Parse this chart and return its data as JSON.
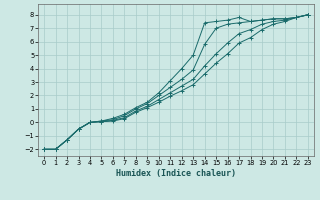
{
  "title": "",
  "xlabel": "Humidex (Indice chaleur)",
  "ylabel": "",
  "xlim": [
    -0.5,
    23.5
  ],
  "ylim": [
    -2.5,
    8.8
  ],
  "xticks": [
    0,
    1,
    2,
    3,
    4,
    5,
    6,
    7,
    8,
    9,
    10,
    11,
    12,
    13,
    14,
    15,
    16,
    17,
    18,
    19,
    20,
    21,
    22,
    23
  ],
  "yticks": [
    -2,
    -1,
    0,
    1,
    2,
    3,
    4,
    5,
    6,
    7,
    8
  ],
  "bg_color": "#cde8e4",
  "grid_color": "#a8ccca",
  "line_color": "#1a6b6b",
  "lines": [
    {
      "x": [
        0,
        1,
        2,
        3,
        4,
        5,
        6,
        7,
        8,
        9,
        10,
        11,
        12,
        13,
        14,
        15,
        16,
        17,
        18,
        19,
        20,
        21,
        22,
        23
      ],
      "y": [
        -2,
        -2,
        -1.3,
        -0.5,
        0.0,
        0.1,
        0.3,
        0.6,
        1.1,
        1.5,
        2.2,
        3.1,
        4.0,
        5.0,
        7.4,
        7.5,
        7.6,
        7.8,
        7.5,
        7.6,
        7.7,
        7.7,
        7.8,
        8.0
      ],
      "marker": "+"
    },
    {
      "x": [
        0,
        1,
        2,
        3,
        4,
        5,
        6,
        7,
        8,
        9,
        10,
        11,
        12,
        13,
        14,
        15,
        16,
        17,
        18,
        19,
        20,
        21,
        22,
        23
      ],
      "y": [
        -2,
        -2,
        -1.3,
        -0.5,
        0.0,
        0.1,
        0.2,
        0.5,
        1.0,
        1.4,
        2.0,
        2.6,
        3.2,
        3.9,
        5.8,
        7.0,
        7.3,
        7.4,
        7.5,
        7.6,
        7.7,
        7.7,
        7.8,
        8.0
      ],
      "marker": "+"
    },
    {
      "x": [
        0,
        1,
        2,
        3,
        4,
        5,
        6,
        7,
        8,
        9,
        10,
        11,
        12,
        13,
        14,
        15,
        16,
        17,
        18,
        19,
        20,
        21,
        22,
        23
      ],
      "y": [
        -2,
        -2,
        -1.3,
        -0.5,
        0.0,
        0.05,
        0.15,
        0.35,
        0.85,
        1.2,
        1.7,
        2.2,
        2.7,
        3.2,
        4.2,
        5.1,
        5.9,
        6.6,
        6.9,
        7.3,
        7.5,
        7.6,
        7.8,
        8.0
      ],
      "marker": "+"
    },
    {
      "x": [
        0,
        1,
        2,
        3,
        4,
        5,
        6,
        7,
        8,
        9,
        10,
        11,
        12,
        13,
        14,
        15,
        16,
        17,
        18,
        19,
        20,
        21,
        22,
        23
      ],
      "y": [
        -2,
        -2,
        -1.3,
        -0.5,
        0.0,
        0.05,
        0.1,
        0.28,
        0.75,
        1.1,
        1.5,
        1.95,
        2.35,
        2.8,
        3.6,
        4.4,
        5.1,
        5.9,
        6.3,
        6.9,
        7.3,
        7.5,
        7.8,
        8.0
      ],
      "marker": "+"
    }
  ]
}
